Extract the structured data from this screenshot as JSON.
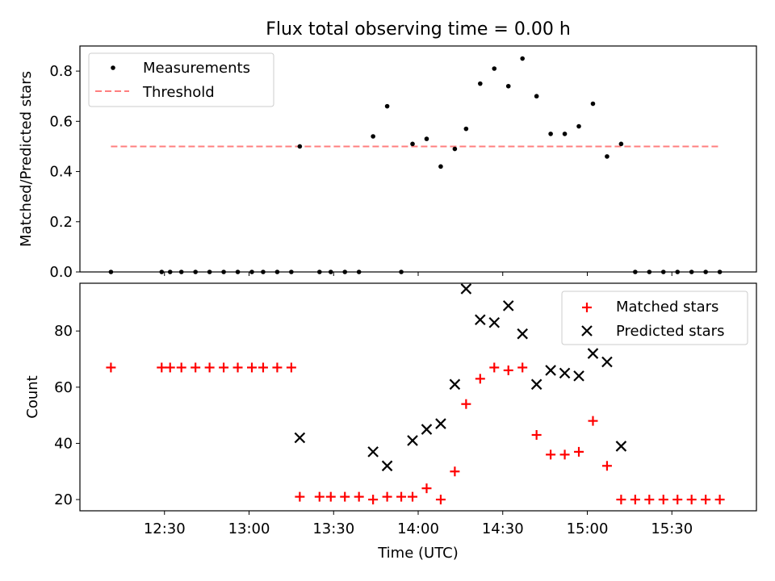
{
  "title": "Flux total observing time = 0.00 h",
  "colors": {
    "matched": "#ff0000",
    "predicted": "#000000",
    "threshold": "#ff7f7f",
    "measurement": "#000000"
  },
  "chart_data": [
    {
      "type": "scatter",
      "title": "Flux total observing time = 0.00 h",
      "xlabel": "",
      "ylabel": "Matched/Predicted stars",
      "xlim": [
        "12:00",
        "16:00"
      ],
      "ylim": [
        0,
        0.9
      ],
      "yticks": [
        "0.0",
        "0.2",
        "0.4",
        "0.6",
        "0.8"
      ],
      "legend": {
        "position": "top-left",
        "entries": [
          "Measurements",
          "Threshold"
        ]
      },
      "series": [
        {
          "name": "Measurements",
          "marker": "dot",
          "x": [
            "12:11",
            "12:29",
            "12:32",
            "12:36",
            "12:41",
            "12:46",
            "12:51",
            "12:56",
            "13:01",
            "13:05",
            "13:10",
            "13:15",
            "13:18",
            "13:25",
            "13:29",
            "13:34",
            "13:39",
            "13:44",
            "13:49",
            "13:54",
            "13:58",
            "14:03",
            "14:08",
            "14:13",
            "14:17",
            "14:22",
            "14:27",
            "14:32",
            "14:37",
            "14:42",
            "14:47",
            "14:52",
            "14:57",
            "15:02",
            "15:07",
            "15:12",
            "15:17",
            "15:22",
            "15:27",
            "15:32",
            "15:37",
            "15:42",
            "15:47"
          ],
          "values": [
            0.0,
            0.0,
            0.0,
            0.0,
            0.0,
            0.0,
            0.0,
            0.0,
            0.0,
            0.0,
            0.0,
            0.0,
            0.5,
            0.0,
            0.0,
            0.0,
            0.0,
            0.54,
            0.66,
            0.0,
            0.51,
            0.53,
            0.42,
            0.49,
            0.57,
            0.75,
            0.81,
            0.74,
            0.85,
            0.7,
            0.55,
            0.55,
            0.58,
            0.67,
            0.46,
            0.51,
            0.0,
            0.0,
            0.0,
            0.0,
            0.0,
            0.0,
            0.0
          ]
        },
        {
          "name": "Threshold",
          "marker": "dashed-line",
          "x": [
            "12:11",
            "15:47"
          ],
          "values": [
            0.5,
            0.5
          ]
        }
      ]
    },
    {
      "type": "scatter",
      "xlabel": "Time (UTC)",
      "ylabel": "Count",
      "xlim": [
        "12:00",
        "16:00"
      ],
      "ylim": [
        16,
        97
      ],
      "yticks": [
        "20",
        "40",
        "60",
        "80"
      ],
      "xticks": [
        "12:30",
        "13:00",
        "13:30",
        "14:00",
        "14:30",
        "15:00",
        "15:30"
      ],
      "legend": {
        "position": "top-right",
        "entries": [
          "Matched stars",
          "Predicted stars"
        ]
      },
      "series": [
        {
          "name": "Matched stars",
          "marker": "plus",
          "x": [
            "12:11",
            "12:29",
            "12:32",
            "12:36",
            "12:41",
            "12:46",
            "12:51",
            "12:56",
            "13:01",
            "13:05",
            "13:10",
            "13:15",
            "13:18",
            "13:25",
            "13:29",
            "13:34",
            "13:39",
            "13:44",
            "13:49",
            "13:54",
            "13:58",
            "14:03",
            "14:08",
            "14:13",
            "14:17",
            "14:22",
            "14:27",
            "14:32",
            "14:37",
            "14:42",
            "14:47",
            "14:52",
            "14:57",
            "15:02",
            "15:07",
            "15:12",
            "15:17",
            "15:22",
            "15:27",
            "15:32",
            "15:37",
            "15:42",
            "15:47"
          ],
          "values": [
            67,
            67,
            67,
            67,
            67,
            67,
            67,
            67,
            67,
            67,
            67,
            67,
            21,
            21,
            21,
            21,
            21,
            20,
            21,
            21,
            21,
            24,
            20,
            30,
            54,
            63,
            67,
            66,
            67,
            43,
            36,
            36,
            37,
            48,
            32,
            20,
            20,
            20,
            20,
            20,
            20,
            20,
            20
          ]
        },
        {
          "name": "Predicted stars",
          "marker": "x",
          "x": [
            "13:18",
            "13:44",
            "13:49",
            "13:58",
            "14:03",
            "14:08",
            "14:13",
            "14:17",
            "14:22",
            "14:27",
            "14:32",
            "14:37",
            "14:42",
            "14:47",
            "14:52",
            "14:57",
            "15:02",
            "15:07",
            "15:12"
          ],
          "values": [
            42,
            37,
            32,
            41,
            45,
            47,
            61,
            95,
            84,
            83,
            89,
            79,
            61,
            66,
            65,
            64,
            72,
            69,
            39
          ]
        }
      ]
    }
  ]
}
